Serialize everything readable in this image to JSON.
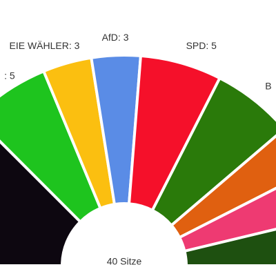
{
  "chart_data": {
    "type": "semicircle-donut",
    "values": [
      10,
      5,
      3,
      3,
      5,
      5,
      3,
      3,
      3
    ],
    "value_labels": [
      null,
      ": 5",
      "EIE WÄHLER: 3",
      "AfD: 3",
      "SPD: 5",
      "B",
      null,
      null,
      null
    ],
    "colors": [
      "#0d0710",
      "#1ec41e",
      "#fbbf10",
      "#5a8ce6",
      "#f5102a",
      "#2a7a0a",
      "#e06010",
      "#ee3a72",
      "#1e5010"
    ],
    "center_label": "40 Sitze"
  }
}
